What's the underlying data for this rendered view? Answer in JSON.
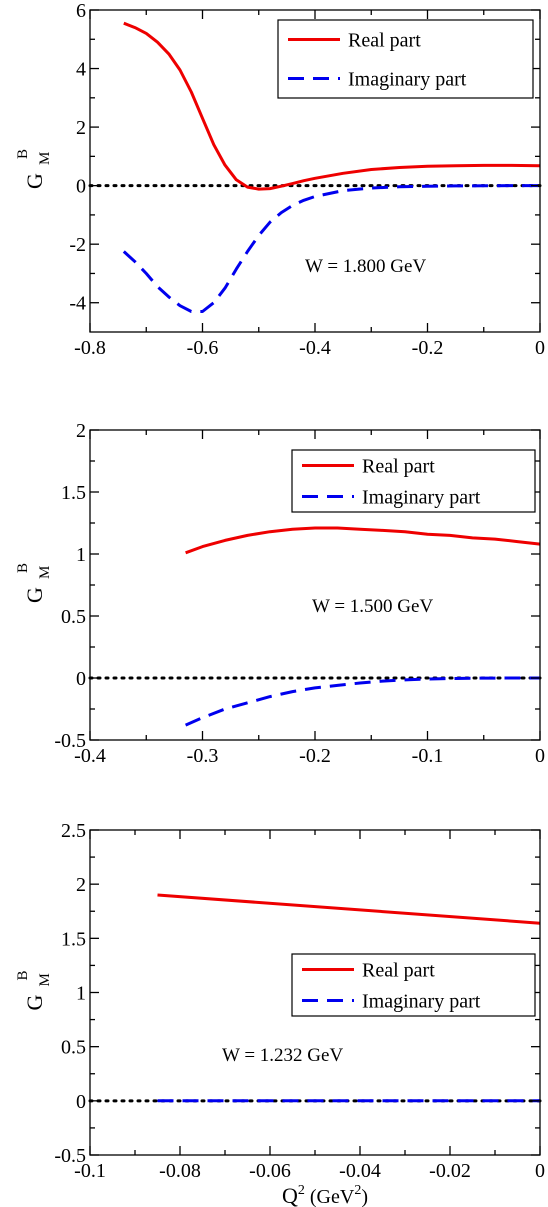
{
  "chart_data": [
    {
      "type": "line",
      "ylabel": {
        "main": "G",
        "sub": "M",
        "sup": "B"
      },
      "xlabel": null,
      "xlim": [
        -0.8,
        0.0
      ],
      "ylim": [
        -5,
        6
      ],
      "xticks": [
        -0.8,
        -0.6,
        -0.4,
        -0.2,
        0
      ],
      "xtick_labels": [
        "-0.8",
        "-0.6",
        "-0.4",
        "-0.2",
        "0"
      ],
      "yticks": [
        -4,
        -2,
        0,
        2,
        4,
        6
      ],
      "ytick_labels": [
        "-4",
        "-2",
        "0",
        "2",
        "4",
        "6"
      ],
      "legend": {
        "entries": [
          "Real part",
          "Imaginary part"
        ],
        "position": "top-right"
      },
      "annotation": "W = 1.800 GeV",
      "zero_line": true,
      "series": [
        {
          "name": "Real part",
          "color": "#ee0000",
          "style": "solid",
          "x": [
            -0.74,
            -0.72,
            -0.7,
            -0.68,
            -0.66,
            -0.64,
            -0.62,
            -0.6,
            -0.58,
            -0.56,
            -0.54,
            -0.52,
            -0.5,
            -0.48,
            -0.46,
            -0.44,
            -0.42,
            -0.4,
            -0.35,
            -0.3,
            -0.25,
            -0.2,
            -0.15,
            -0.1,
            -0.05,
            0.0
          ],
          "y": [
            5.55,
            5.4,
            5.2,
            4.9,
            4.5,
            3.95,
            3.2,
            2.3,
            1.4,
            0.7,
            0.2,
            -0.05,
            -0.12,
            -0.1,
            -0.02,
            0.07,
            0.17,
            0.25,
            0.42,
            0.55,
            0.62,
            0.66,
            0.68,
            0.69,
            0.69,
            0.68
          ]
        },
        {
          "name": "Imaginary part",
          "color": "#0000ee",
          "style": "dashed",
          "x": [
            -0.74,
            -0.72,
            -0.7,
            -0.68,
            -0.66,
            -0.64,
            -0.62,
            -0.6,
            -0.58,
            -0.56,
            -0.54,
            -0.52,
            -0.5,
            -0.48,
            -0.46,
            -0.44,
            -0.42,
            -0.4,
            -0.35,
            -0.3,
            -0.25,
            -0.2,
            -0.15,
            -0.1,
            -0.05,
            0.0
          ],
          "y": [
            -2.25,
            -2.6,
            -3.0,
            -3.45,
            -3.8,
            -4.1,
            -4.3,
            -4.3,
            -4.0,
            -3.5,
            -2.85,
            -2.25,
            -1.7,
            -1.25,
            -0.92,
            -0.68,
            -0.5,
            -0.37,
            -0.17,
            -0.08,
            -0.04,
            -0.02,
            -0.01,
            -0.005,
            0.0,
            0.0
          ]
        }
      ]
    },
    {
      "type": "line",
      "ylabel": {
        "main": "G",
        "sub": "M",
        "sup": "B"
      },
      "xlabel": null,
      "xlim": [
        -0.4,
        0.0
      ],
      "ylim": [
        -0.5,
        2.0
      ],
      "xticks": [
        -0.4,
        -0.3,
        -0.2,
        -0.1,
        0
      ],
      "xtick_labels": [
        "-0.4",
        "-0.3",
        "-0.2",
        "-0.1",
        "0"
      ],
      "yticks": [
        -0.5,
        0,
        0.5,
        1,
        1.5,
        2
      ],
      "ytick_labels": [
        "-0.5",
        "0",
        "0.5",
        "1",
        "1.5",
        "2"
      ],
      "legend": {
        "entries": [
          "Real part",
          "Imaginary part"
        ],
        "position": "top-right"
      },
      "annotation": "W = 1.500 GeV",
      "zero_line": true,
      "series": [
        {
          "name": "Real part",
          "color": "#ee0000",
          "style": "solid",
          "x": [
            -0.315,
            -0.3,
            -0.28,
            -0.26,
            -0.24,
            -0.22,
            -0.2,
            -0.18,
            -0.16,
            -0.14,
            -0.12,
            -0.1,
            -0.08,
            -0.06,
            -0.04,
            -0.02,
            0.0
          ],
          "y": [
            1.01,
            1.06,
            1.11,
            1.15,
            1.18,
            1.2,
            1.21,
            1.21,
            1.2,
            1.19,
            1.18,
            1.16,
            1.15,
            1.13,
            1.12,
            1.1,
            1.08
          ]
        },
        {
          "name": "Imaginary part",
          "color": "#0000ee",
          "style": "dashed",
          "x": [
            -0.315,
            -0.3,
            -0.28,
            -0.26,
            -0.24,
            -0.22,
            -0.2,
            -0.18,
            -0.16,
            -0.14,
            -0.12,
            -0.1,
            -0.08,
            -0.06,
            -0.04,
            -0.02,
            0.0
          ],
          "y": [
            -0.38,
            -0.32,
            -0.25,
            -0.2,
            -0.15,
            -0.11,
            -0.08,
            -0.06,
            -0.04,
            -0.025,
            -0.015,
            -0.008,
            -0.004,
            -0.002,
            -0.001,
            0.0,
            0.0
          ]
        }
      ]
    },
    {
      "type": "line",
      "ylabel": {
        "main": "G",
        "sub": "M",
        "sup": "B"
      },
      "xlabel": {
        "main": "Q",
        "sup": "2",
        "unit_open": " (GeV",
        "unit_sup": "2",
        "unit_close": ")"
      },
      "xlim": [
        -0.1,
        0.0
      ],
      "ylim": [
        -0.5,
        2.5
      ],
      "xticks": [
        -0.1,
        -0.08,
        -0.06,
        -0.04,
        -0.02,
        0
      ],
      "xtick_labels": [
        "-0.1",
        "-0.08",
        "-0.06",
        "-0.04",
        "-0.02",
        "0"
      ],
      "yticks": [
        -0.5,
        0,
        0.5,
        1,
        1.5,
        2,
        2.5
      ],
      "ytick_labels": [
        "-0.5",
        "0",
        "0.5",
        "1",
        "1.5",
        "2",
        "2.5"
      ],
      "legend": {
        "entries": [
          "Real part",
          "Imaginary part"
        ],
        "position": "center-right"
      },
      "annotation": "W = 1.232 GeV",
      "zero_line": true,
      "series": [
        {
          "name": "Real part",
          "color": "#ee0000",
          "style": "solid",
          "x": [
            -0.085,
            0.0
          ],
          "y": [
            1.9,
            1.64
          ]
        },
        {
          "name": "Imaginary part",
          "color": "#0000ee",
          "style": "dashed",
          "x": [
            -0.085,
            0.0
          ],
          "y": [
            0.0,
            0.0
          ]
        }
      ]
    }
  ]
}
